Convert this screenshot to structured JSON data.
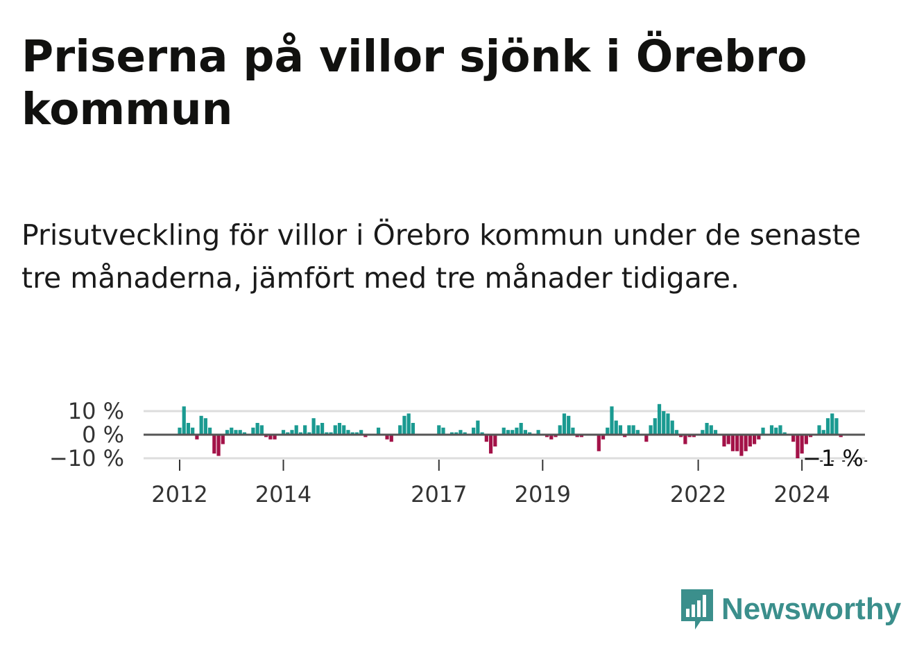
{
  "title": "Priserna på villor sjönk i Örebro kommun",
  "subtitle": "Prisutveckling för villor i Örebro kommun under de senaste tre månaderna, jämfört med tre månader tidigare.",
  "brand": {
    "name": "Newsworthy",
    "color": "#3b8f8c",
    "icon": "bar-chart-speech-bubble-icon"
  },
  "colors": {
    "positive": "#1a9a91",
    "negative": "#a31248",
    "zero_line": "#555555",
    "grid": "#dddddd"
  },
  "chart_data": {
    "type": "bar",
    "x_start": "2012-01",
    "x_frequency": "monthly",
    "y_unit": "%",
    "y_ticks": [
      {
        "value": 10,
        "label": "10 %"
      },
      {
        "value": 0,
        "label": "0 %"
      },
      {
        "value": -10,
        "label": "−10 %"
      }
    ],
    "x_ticks": [
      {
        "date": "2012-01",
        "label": "2012"
      },
      {
        "date": "2014-01",
        "label": "2014"
      },
      {
        "date": "2017-01",
        "label": "2017"
      },
      {
        "date": "2019-01",
        "label": "2019"
      },
      {
        "date": "2022-01",
        "label": "2022"
      },
      {
        "date": "2024-01",
        "label": "2024"
      }
    ],
    "ylim": [
      -10,
      10
    ],
    "grid": true,
    "last_value_label": "−1 %",
    "values": [
      3,
      12,
      5,
      3,
      -2,
      8,
      7,
      3,
      -8,
      -9,
      -4,
      2,
      3,
      2,
      2,
      1,
      0,
      3,
      5,
      4,
      -1,
      -2,
      -2,
      0,
      2,
      1,
      2,
      4,
      1,
      4,
      1,
      7,
      4,
      5,
      1,
      1,
      4,
      5,
      4,
      2,
      1,
      1,
      2,
      -1,
      0,
      0,
      3,
      0,
      -2,
      -3,
      0,
      4,
      8,
      9,
      5,
      0,
      0,
      0,
      0,
      0,
      4,
      3,
      0,
      1,
      1,
      2,
      1,
      0,
      3,
      6,
      1,
      -3,
      -8,
      -5,
      0,
      3,
      2,
      2,
      3,
      5,
      2,
      1,
      0,
      2,
      0,
      -1,
      -2,
      -1,
      4,
      9,
      8,
      3,
      -1,
      -1,
      0,
      0,
      0,
      -7,
      -2,
      3,
      12,
      6,
      4,
      -1,
      4,
      4,
      2,
      0,
      -3,
      4,
      7,
      13,
      10,
      9,
      6,
      2,
      -1,
      -4,
      -1,
      -1,
      0,
      2,
      5,
      4,
      2,
      0,
      -5,
      -4,
      -7,
      -7,
      -9,
      -7,
      -5,
      -4,
      -2,
      3,
      0,
      4,
      3,
      4,
      1,
      0,
      -3,
      -10,
      -8,
      -4,
      -1,
      0,
      4,
      2,
      7,
      9,
      7,
      -1
    ]
  }
}
